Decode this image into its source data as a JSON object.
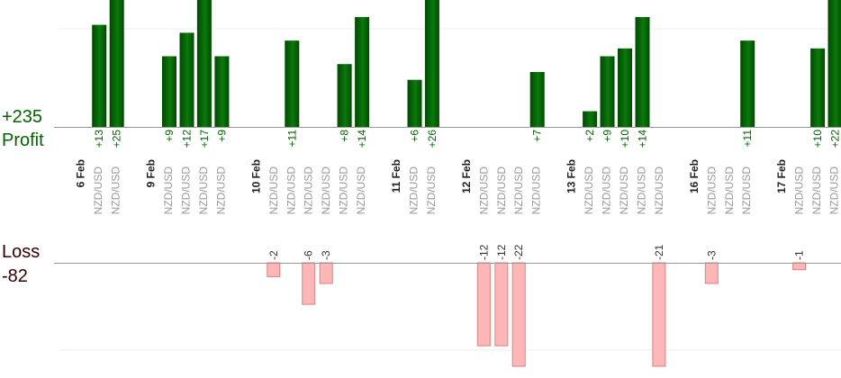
{
  "summary": {
    "profit_total": "+235",
    "profit_label": "Profit",
    "loss_label": "Loss",
    "loss_total": "-82"
  },
  "colors": {
    "profit_dark": "#005000",
    "profit_light": "#0a7a0a",
    "profit_text": "#006400",
    "loss_fill": "#ffb6b6",
    "loss_stroke": "#e08080",
    "loss_text": "#330000",
    "axis": "#999999",
    "grid": "#eeeeee"
  },
  "chart_data": {
    "type": "bar",
    "profit_axis_max": 12.5,
    "loss_axis_max": 12.5,
    "slots": [
      {
        "kind": "date",
        "label": "6 Feb"
      },
      {
        "kind": "trade",
        "pair": "NZD/USD",
        "value": 13,
        "label": "+13"
      },
      {
        "kind": "trade",
        "pair": "NZD/USD",
        "value": 25,
        "label": "+25"
      },
      {
        "kind": "gap"
      },
      {
        "kind": "date",
        "label": "9 Feb"
      },
      {
        "kind": "trade",
        "pair": "NZD/USD",
        "value": 9,
        "label": "+9"
      },
      {
        "kind": "trade",
        "pair": "NZD/USD",
        "value": 12,
        "label": "+12"
      },
      {
        "kind": "trade",
        "pair": "NZD/USD",
        "value": 17,
        "label": "+17"
      },
      {
        "kind": "trade",
        "pair": "NZD/USD",
        "value": 9,
        "label": "+9"
      },
      {
        "kind": "gap"
      },
      {
        "kind": "date",
        "label": "10 Feb"
      },
      {
        "kind": "trade",
        "pair": "NZD/USD",
        "value": -2,
        "label": "-2"
      },
      {
        "kind": "trade",
        "pair": "NZD/USD",
        "value": 11,
        "label": "+11"
      },
      {
        "kind": "trade",
        "pair": "NZD/USD",
        "value": -6,
        "label": "-6"
      },
      {
        "kind": "trade",
        "pair": "NZD/USD",
        "value": -3,
        "label": "-3"
      },
      {
        "kind": "trade",
        "pair": "NZD/USD",
        "value": 8,
        "label": "+8"
      },
      {
        "kind": "trade",
        "pair": "NZD/USD",
        "value": 14,
        "label": "+14"
      },
      {
        "kind": "gap"
      },
      {
        "kind": "date",
        "label": "11 Feb"
      },
      {
        "kind": "trade",
        "pair": "NZD/USD",
        "value": 6,
        "label": "+6"
      },
      {
        "kind": "trade",
        "pair": "NZD/USD",
        "value": 26,
        "label": "+26"
      },
      {
        "kind": "gap"
      },
      {
        "kind": "date",
        "label": "12 Feb"
      },
      {
        "kind": "trade",
        "pair": "NZD/USD",
        "value": -12,
        "label": "-12"
      },
      {
        "kind": "trade",
        "pair": "NZD/USD",
        "value": -12,
        "label": "-12"
      },
      {
        "kind": "trade",
        "pair": "NZD/USD",
        "value": -22,
        "label": "-22"
      },
      {
        "kind": "trade",
        "pair": "NZD/USD",
        "value": 7,
        "label": "+7"
      },
      {
        "kind": "gap"
      },
      {
        "kind": "date",
        "label": "13 Feb"
      },
      {
        "kind": "trade",
        "pair": "NZD/USD",
        "value": 2,
        "label": "+2"
      },
      {
        "kind": "trade",
        "pair": "NZD/USD",
        "value": 9,
        "label": "+9"
      },
      {
        "kind": "trade",
        "pair": "NZD/USD",
        "value": 10,
        "label": "+10"
      },
      {
        "kind": "trade",
        "pair": "NZD/USD",
        "value": 14,
        "label": "+14"
      },
      {
        "kind": "trade",
        "pair": "NZD/USD",
        "value": -21,
        "label": "-21"
      },
      {
        "kind": "gap"
      },
      {
        "kind": "date",
        "label": "16 Feb"
      },
      {
        "kind": "trade",
        "pair": "NZD/USD",
        "value": -3,
        "label": "-3"
      },
      {
        "kind": "trade",
        "pair": "NZD/USD",
        "value": null,
        "label": ""
      },
      {
        "kind": "trade",
        "pair": "NZD/USD",
        "value": 11,
        "label": "+11"
      },
      {
        "kind": "gap"
      },
      {
        "kind": "date",
        "label": "17 Feb"
      },
      {
        "kind": "trade",
        "pair": "NZD/USD",
        "value": -1,
        "label": "-1"
      },
      {
        "kind": "trade",
        "pair": "NZD/USD",
        "value": 10,
        "label": "+10"
      },
      {
        "kind": "trade",
        "pair": "NZD/USD",
        "value": 22,
        "label": "+22"
      }
    ]
  }
}
